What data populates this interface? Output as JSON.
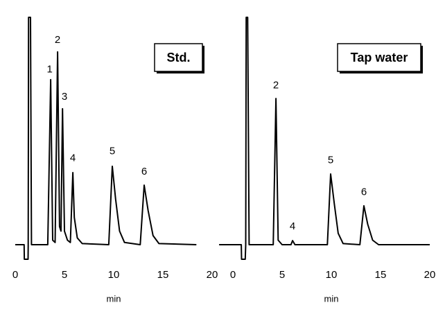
{
  "chart_data": [
    {
      "type": "line",
      "label": "Std.",
      "xlabel": "min",
      "color": "#000000",
      "xlim": [
        0,
        20
      ],
      "xticks": [
        0,
        5,
        10,
        15,
        20
      ],
      "ylim": [
        -7,
        100
      ],
      "grid": false,
      "x": [
        0,
        0.9,
        0.92,
        1.3,
        1.32,
        1.35,
        1.55,
        1.65,
        3.3,
        3.6,
        3.8,
        4.05,
        4.3,
        4.5,
        4.65,
        4.8,
        5.0,
        5.3,
        5.6,
        5.85,
        6.0,
        6.3,
        6.8,
        9.5,
        9.86,
        10.2,
        10.6,
        11.1,
        12.7,
        13.1,
        13.5,
        14.0,
        14.6,
        18.4
      ],
      "values": [
        0,
        0,
        -6.4,
        -6.4,
        0,
        100,
        100,
        0,
        0,
        72.6,
        2,
        1,
        84.8,
        8,
        6,
        59.8,
        6,
        2,
        1,
        31.7,
        12,
        3,
        0.5,
        0,
        34.5,
        20,
        6,
        1,
        0,
        26.2,
        15,
        4,
        0.5,
        0
      ],
      "annotations": [
        {
          "text": "1",
          "x": 3.5,
          "y": 77
        },
        {
          "text": "2",
          "x": 4.3,
          "y": 90
        },
        {
          "text": "3",
          "x": 5.0,
          "y": 65
        },
        {
          "text": "4",
          "x": 5.85,
          "y": 38
        },
        {
          "text": "5",
          "x": 9.86,
          "y": 41
        },
        {
          "text": "6",
          "x": 13.1,
          "y": 32
        }
      ]
    },
    {
      "type": "line",
      "label": "Tap water",
      "xlabel": "min",
      "color": "#000000",
      "xlim": [
        0,
        20
      ],
      "xticks": [
        0,
        5,
        10,
        15,
        20
      ],
      "ylim": [
        -7,
        100
      ],
      "grid": false,
      "x": [
        -1.4,
        0.85,
        0.88,
        1.25,
        1.3,
        1.35,
        1.5,
        1.65,
        4.1,
        4.37,
        4.6,
        5.0,
        5.9,
        6.06,
        6.3,
        9.6,
        9.93,
        10.3,
        10.7,
        11.2,
        12.9,
        13.31,
        13.7,
        14.2,
        14.8,
        20
      ],
      "values": [
        0,
        0,
        -6.4,
        -6.4,
        0,
        100,
        100,
        0,
        0,
        64.3,
        2,
        0,
        0,
        1.8,
        0,
        0,
        31.1,
        18,
        5,
        0.5,
        0,
        17.1,
        9,
        2,
        0,
        0
      ],
      "annotations": [
        {
          "text": "2",
          "x": 4.37,
          "y": 70
        },
        {
          "text": "4",
          "x": 6.06,
          "y": 8
        },
        {
          "text": "5",
          "x": 9.93,
          "y": 37
        },
        {
          "text": "6",
          "x": 13.31,
          "y": 23
        }
      ]
    }
  ]
}
